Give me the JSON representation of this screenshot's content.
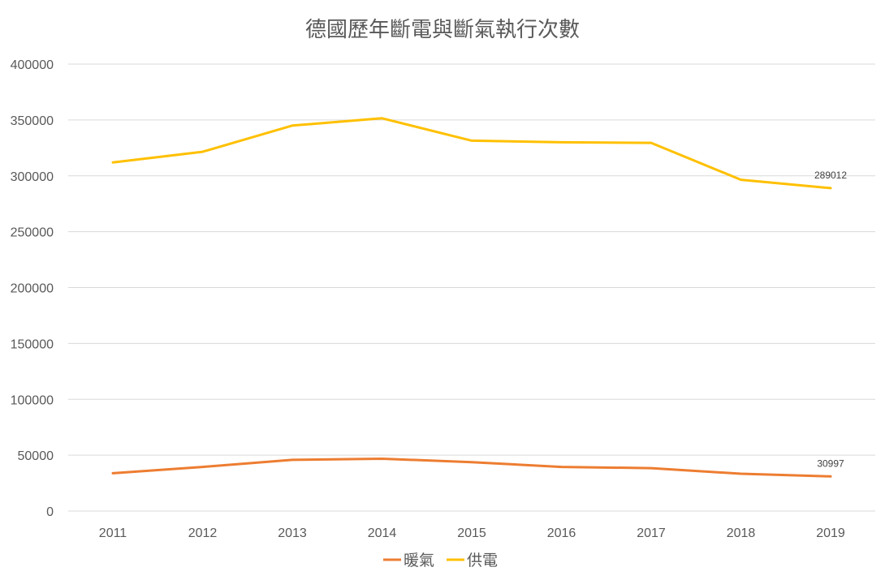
{
  "chart_data": {
    "type": "line",
    "title": "德國歷年斷電與斷氣執行次數",
    "xlabel": "",
    "ylabel": "",
    "categories": [
      "2011",
      "2012",
      "2013",
      "2014",
      "2015",
      "2016",
      "2017",
      "2018",
      "2019"
    ],
    "ylim": [
      0,
      400000
    ],
    "yticks": [
      "0",
      "50000",
      "100000",
      "150000",
      "200000",
      "250000",
      "300000",
      "350000",
      "400000"
    ],
    "grid": true,
    "legend_position": "bottom",
    "series": [
      {
        "name": "暖氣",
        "color": "#ED7D31",
        "values": [
          33800,
          39500,
          45800,
          46800,
          43800,
          39500,
          38400,
          33400,
          30997
        ],
        "end_label": "30997"
      },
      {
        "name": "供電",
        "color": "#FFC000",
        "values": [
          312000,
          321500,
          345000,
          351500,
          331500,
          330000,
          329500,
          296500,
          289012
        ],
        "end_label": "289012"
      }
    ]
  }
}
